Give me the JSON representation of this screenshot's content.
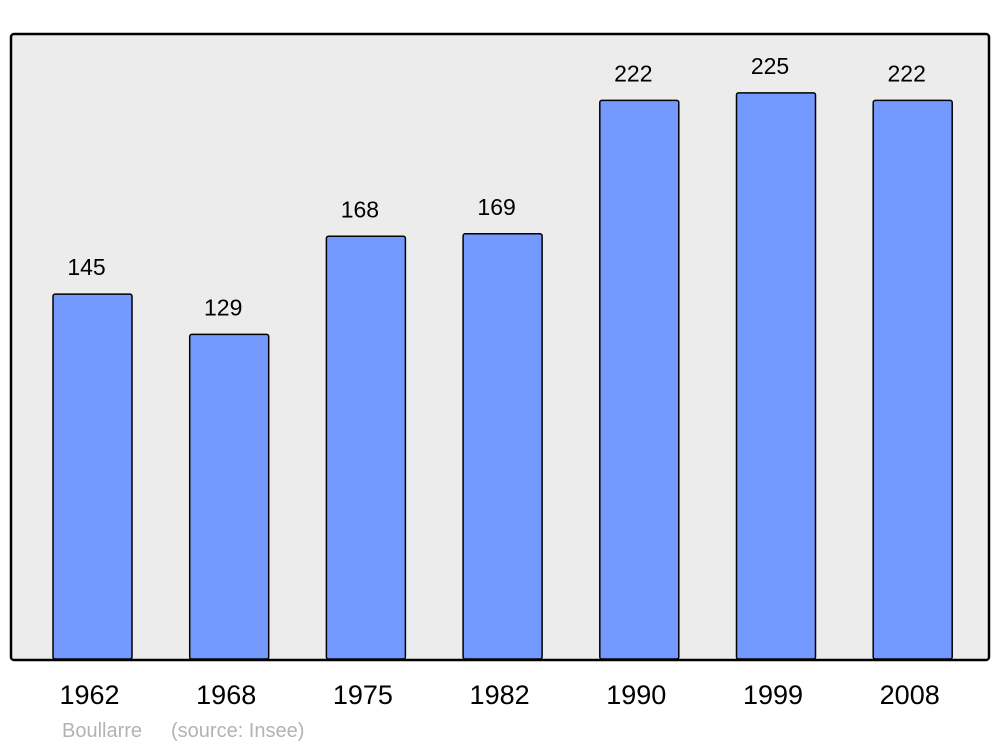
{
  "chart_data": {
    "type": "bar",
    "categories": [
      "1962",
      "1968",
      "1975",
      "1982",
      "1990",
      "1999",
      "2008"
    ],
    "values": [
      145,
      129,
      168,
      169,
      222,
      225,
      222
    ],
    "data_labels": [
      "145",
      "129",
      "168",
      "169",
      "222",
      "225",
      "222"
    ],
    "title": "",
    "xlabel": "",
    "ylabel": "",
    "ylim": [
      0,
      248
    ],
    "grid": false,
    "legend": "none",
    "colors": {
      "bar": "#7399ff",
      "plot_background": "#ececec",
      "frame": "#000000",
      "source_text": "#b3b3b3"
    }
  },
  "footer": {
    "place": "Boullarre",
    "source": "(source: Insee)"
  }
}
